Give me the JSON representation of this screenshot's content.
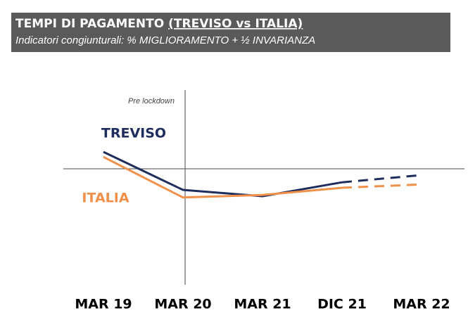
{
  "chart_data": {
    "type": "line",
    "title": "TEMPI DI PAGAMENTO",
    "title_underlined": "(TREVISO vs ITALIA)",
    "subtitle": "Indicatori congiunturali: % MIGLIORAMENTO + ½ INVARIANZA",
    "annotation": "Pre lockdown",
    "categories": [
      "MAR 19",
      "MAR 20",
      "MAR 21",
      "DIC 21",
      "MAR 22"
    ],
    "series": [
      {
        "name": "TREVISO",
        "color": "#1f2d5c",
        "values": [
          54,
          45,
          43.5,
          46.8,
          48.5
        ]
      },
      {
        "name": "ITALIA",
        "color": "#f0904a",
        "values": [
          52.8,
          43.2,
          43.8,
          45.5,
          46.3
        ]
      }
    ],
    "ylim": [
      20,
      70
    ],
    "reference_line": 50,
    "dashed_from_index": 3
  }
}
